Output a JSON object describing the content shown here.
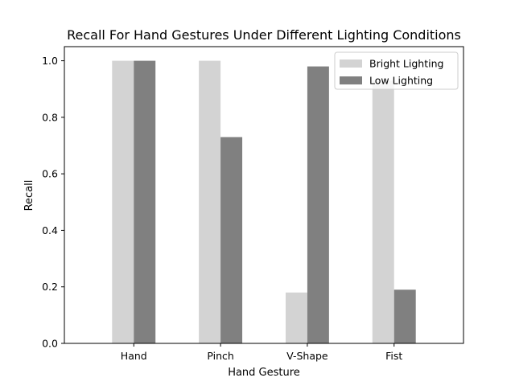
{
  "chart_data": {
    "type": "bar",
    "title": "Recall For Hand Gestures Under Different Lighting Conditions",
    "xlabel": "Hand Gesture",
    "ylabel": "Recall",
    "categories": [
      "Hand",
      "Pinch",
      "V-Shape",
      "Fist"
    ],
    "series": [
      {
        "name": "Bright Lighting",
        "values": [
          1.0,
          1.0,
          0.18,
          0.93
        ],
        "color": "#d3d3d3"
      },
      {
        "name": "Low Lighting",
        "values": [
          1.0,
          0.73,
          0.98,
          0.19
        ],
        "color": "#808080"
      }
    ],
    "ylim": [
      0,
      1.05
    ],
    "yticks": [
      0.0,
      0.2,
      0.4,
      0.6,
      0.8,
      1.0
    ],
    "ytick_labels": [
      "0.0",
      "0.2",
      "0.4",
      "0.6",
      "0.8",
      "1.0"
    ],
    "grid": false,
    "legend_position": "top-right"
  }
}
